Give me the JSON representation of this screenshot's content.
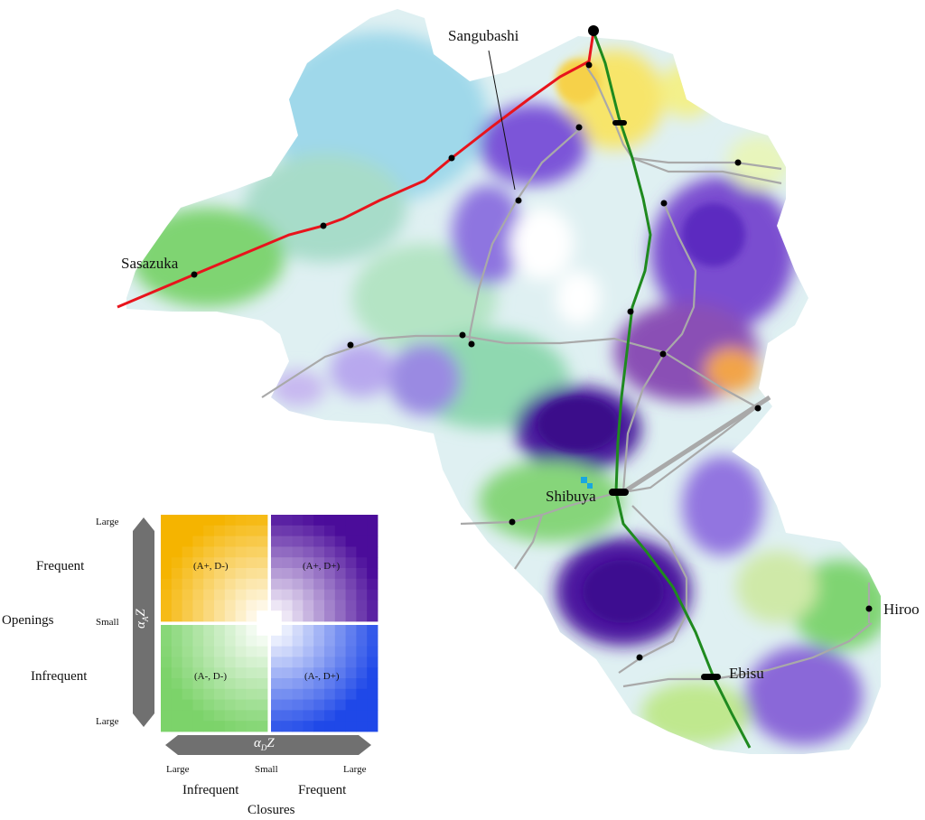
{
  "map": {
    "stations": {
      "sangubashi": "Sangubashi",
      "sasazuka": "Sasazuka",
      "shibuya": "Shibuya",
      "hiroo": "Hiroo",
      "ebisu": "Ebisu"
    },
    "colors": {
      "keio_line": "#e8141c",
      "yamanote_line": "#1f8a1f",
      "other_lines": "#a9a9a9",
      "orange": "#f5b400",
      "purple": "#4b0c9a",
      "green": "#7cd36a",
      "blue": "#1f48e8"
    }
  },
  "legend": {
    "openings_label": "Openings",
    "frequent": "Frequent",
    "infrequent": "Infrequent",
    "large_top": "Large",
    "small_mid": "Small",
    "large_bottom": "Large",
    "alpha_a": "α",
    "alpha_a_sub": "A",
    "alpha_d": "α",
    "alpha_d_sub": "D",
    "z": "Z",
    "quadrants": {
      "top_left": "(A+, D-)",
      "top_right": "(A+, D+)",
      "bottom_left": "(A-, D-)",
      "bottom_right": "(A-, D+)"
    },
    "x_large_left": "Large",
    "x_small": "Small",
    "x_large_right": "Large",
    "x_infrequent": "Infrequent",
    "x_frequent": "Frequent",
    "closures_label": "Closures"
  }
}
